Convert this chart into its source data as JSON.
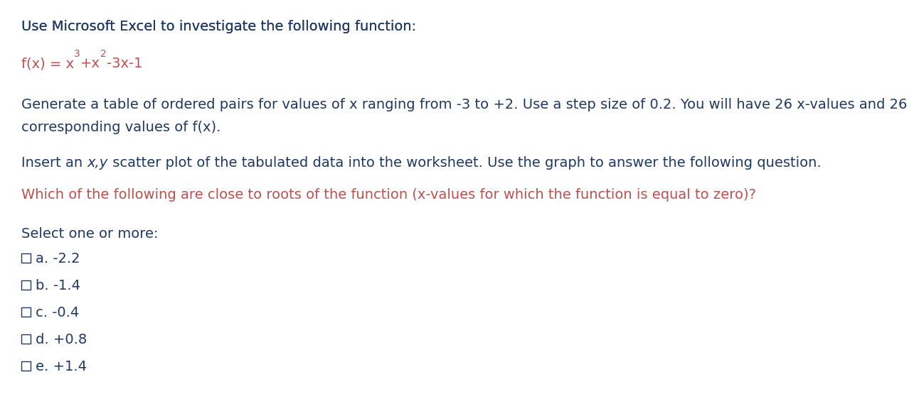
{
  "background_color": "#ffffff",
  "blue": "#1f3864",
  "red": "#c0504d",
  "fontsize": 14,
  "line1": "Use Microsoft Excel to investigate the following function:",
  "line3a": "Generate a table of ordered pairs for values of x ranging from -3 to +2. Use a step size of 0.2. You will have 26 x-values and 26",
  "line3b": "corresponding values of f(x).",
  "line4_pre": "Insert an ",
  "line4_italic": "x,y",
  "line4_post": " scatter plot of the tabulated data into the worksheet. Use the graph to answer the following question.",
  "line5": "Which of the following are close to roots of the function (x-values for which the function is equal to zero)?",
  "select_label": "Select one or more:",
  "options": [
    "a. -2.2",
    "b. -1.4",
    "c. -0.4",
    "d. +0.8",
    "e. +1.4"
  ],
  "fx_prefix": "f(x) = x",
  "fx_sup1": "3",
  "fx_mid": "+x",
  "fx_sup2": "2",
  "fx_suffix": "-3x-1"
}
